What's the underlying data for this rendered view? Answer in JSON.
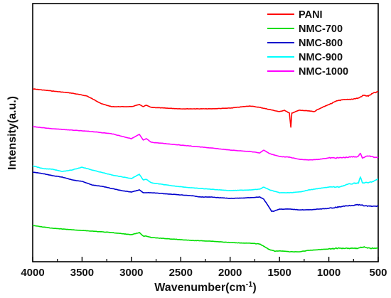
{
  "chart_data": {
    "type": "line",
    "title": "",
    "xlabel": "Wavenumber(cm",
    "xlabel_sup": "-1",
    "xlabel_end": ")",
    "ylabel": "Intensity(a.u.)",
    "xlim": [
      4000,
      500
    ],
    "x_reversed": true,
    "y_ticks_shown": false,
    "xticks": [
      4000,
      3500,
      3000,
      2500,
      2000,
      1500,
      1000,
      500
    ],
    "xtick_labels": [
      "4000",
      "3500",
      "3000",
      "2500",
      "2000",
      "1500",
      "1000",
      "500"
    ],
    "grid": false,
    "legend_position": "top-right",
    "legend": [
      "PANI",
      "NMC-700",
      "NMC-800",
      "NMC-900",
      "NMC-1000"
    ],
    "series": [
      {
        "name": "PANI",
        "color": "#ff0000",
        "points": [
          [
            4000,
            120
          ],
          [
            3800,
            123
          ],
          [
            3600,
            126
          ],
          [
            3450,
            130
          ],
          [
            3300,
            141
          ],
          [
            3200,
            145
          ],
          [
            3000,
            145
          ],
          [
            2920,
            142
          ],
          [
            2880,
            145
          ],
          [
            2850,
            143
          ],
          [
            2800,
            146
          ],
          [
            2500,
            148
          ],
          [
            2200,
            148
          ],
          [
            2000,
            147
          ],
          [
            1800,
            144
          ],
          [
            1700,
            146
          ],
          [
            1600,
            149
          ],
          [
            1500,
            152
          ],
          [
            1450,
            150
          ],
          [
            1400,
            154
          ],
          [
            1385,
            174
          ],
          [
            1375,
            154
          ],
          [
            1300,
            150
          ],
          [
            1200,
            151
          ],
          [
            1150,
            152
          ],
          [
            1100,
            148
          ],
          [
            1000,
            142
          ],
          [
            900,
            136
          ],
          [
            800,
            135
          ],
          [
            700,
            133
          ],
          [
            650,
            129
          ],
          [
            600,
            130
          ],
          [
            550,
            126
          ],
          [
            500,
            124
          ]
        ]
      },
      {
        "name": "NMC-1000",
        "color": "#ff00ff",
        "points": [
          [
            4000,
            173
          ],
          [
            3800,
            176
          ],
          [
            3600,
            178
          ],
          [
            3400,
            180
          ],
          [
            3200,
            183
          ],
          [
            3000,
            190
          ],
          [
            2920,
            184
          ],
          [
            2880,
            192
          ],
          [
            2850,
            190
          ],
          [
            2800,
            195
          ],
          [
            2500,
            199
          ],
          [
            2200,
            203
          ],
          [
            2000,
            206
          ],
          [
            1800,
            208
          ],
          [
            1700,
            210
          ],
          [
            1660,
            206
          ],
          [
            1600,
            211
          ],
          [
            1500,
            215
          ],
          [
            1400,
            216
          ],
          [
            1300,
            219
          ],
          [
            1200,
            220
          ],
          [
            1100,
            219
          ],
          [
            1000,
            217
          ],
          [
            900,
            217
          ],
          [
            800,
            216
          ],
          [
            700,
            215
          ],
          [
            680,
            210
          ],
          [
            660,
            217
          ],
          [
            600,
            214
          ],
          [
            550,
            216
          ],
          [
            500,
            216
          ]
        ]
      },
      {
        "name": "NMC-900",
        "color": "#00ffff",
        "points": [
          [
            4000,
            228
          ],
          [
            3900,
            232
          ],
          [
            3800,
            233
          ],
          [
            3700,
            236
          ],
          [
            3600,
            234
          ],
          [
            3500,
            230
          ],
          [
            3400,
            234
          ],
          [
            3200,
            241
          ],
          [
            3000,
            246
          ],
          [
            2920,
            240
          ],
          [
            2880,
            248
          ],
          [
            2850,
            247
          ],
          [
            2800,
            252
          ],
          [
            2600,
            256
          ],
          [
            2400,
            259
          ],
          [
            2200,
            261
          ],
          [
            2000,
            263
          ],
          [
            1800,
            262
          ],
          [
            1700,
            261
          ],
          [
            1660,
            258
          ],
          [
            1600,
            262
          ],
          [
            1500,
            266
          ],
          [
            1400,
            266
          ],
          [
            1300,
            265
          ],
          [
            1200,
            262
          ],
          [
            1100,
            260
          ],
          [
            1000,
            258
          ],
          [
            900,
            258
          ],
          [
            800,
            254
          ],
          [
            700,
            252
          ],
          [
            680,
            244
          ],
          [
            660,
            252
          ],
          [
            600,
            252
          ],
          [
            550,
            250
          ],
          [
            500,
            247
          ]
        ]
      },
      {
        "name": "NMC-800",
        "color": "#0000cc",
        "points": [
          [
            4000,
            237
          ],
          [
            3900,
            239
          ],
          [
            3800,
            242
          ],
          [
            3700,
            244
          ],
          [
            3600,
            248
          ],
          [
            3500,
            250
          ],
          [
            3400,
            255
          ],
          [
            3300,
            257
          ],
          [
            3200,
            260
          ],
          [
            3100,
            263
          ],
          [
            3000,
            265
          ],
          [
            2920,
            262
          ],
          [
            2880,
            266
          ],
          [
            2850,
            266
          ],
          [
            2800,
            266
          ],
          [
            2600,
            268
          ],
          [
            2400,
            270
          ],
          [
            2300,
            272
          ],
          [
            2200,
            272
          ],
          [
            2000,
            274
          ],
          [
            1800,
            273
          ],
          [
            1700,
            272
          ],
          [
            1660,
            275
          ],
          [
            1620,
            283
          ],
          [
            1580,
            292
          ],
          [
            1560,
            292
          ],
          [
            1500,
            289
          ],
          [
            1400,
            289
          ],
          [
            1300,
            290
          ],
          [
            1200,
            290
          ],
          [
            1100,
            289
          ],
          [
            1000,
            288
          ],
          [
            900,
            286
          ],
          [
            800,
            284
          ],
          [
            700,
            283
          ],
          [
            600,
            285
          ],
          [
            500,
            285
          ]
        ]
      },
      {
        "name": "NMC-700",
        "color": "#00dd00",
        "points": [
          [
            4000,
            312
          ],
          [
            3800,
            316
          ],
          [
            3600,
            318
          ],
          [
            3400,
            320
          ],
          [
            3200,
            322
          ],
          [
            3000,
            325
          ],
          [
            2920,
            322
          ],
          [
            2880,
            327
          ],
          [
            2850,
            327
          ],
          [
            2800,
            329
          ],
          [
            2600,
            331
          ],
          [
            2400,
            333
          ],
          [
            2200,
            334
          ],
          [
            2000,
            336
          ],
          [
            1800,
            337
          ],
          [
            1700,
            338
          ],
          [
            1650,
            342
          ],
          [
            1600,
            346
          ],
          [
            1550,
            348
          ],
          [
            1450,
            348
          ],
          [
            1400,
            349
          ],
          [
            1300,
            349
          ],
          [
            1200,
            347
          ],
          [
            1100,
            346
          ],
          [
            1000,
            345
          ],
          [
            900,
            344
          ],
          [
            800,
            344
          ],
          [
            700,
            344
          ],
          [
            650,
            342
          ],
          [
            600,
            344
          ],
          [
            550,
            344
          ],
          [
            500,
            344
          ]
        ]
      }
    ]
  }
}
